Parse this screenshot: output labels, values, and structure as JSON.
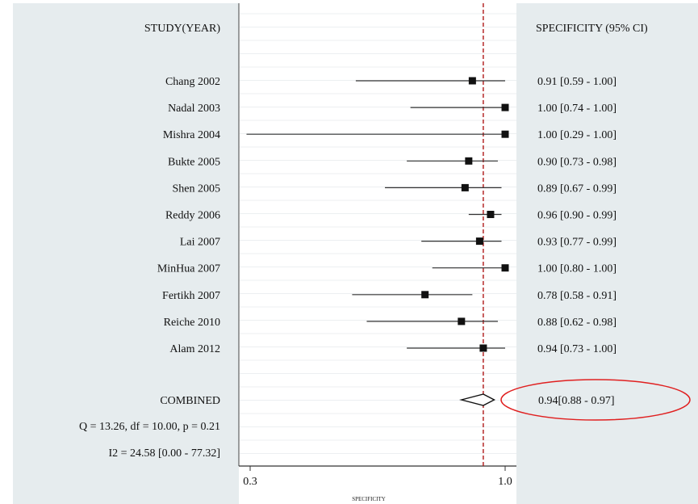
{
  "chart_data": {
    "type": "forest",
    "headers": {
      "study": "STUDY(YEAR)",
      "estimate": "SPECIFICITY (95% CI)"
    },
    "xlabel": "SPECIFICITY",
    "xlim": [
      0.3,
      1.0
    ],
    "x_ticks": [
      "0.3",
      "1.0"
    ],
    "reference_value": 0.94,
    "studies": [
      {
        "label": "Chang 2002",
        "value": 0.91,
        "low": 0.59,
        "high": 1.0,
        "text": "0.91 [0.59 - 1.00]"
      },
      {
        "label": "Nadal 2003",
        "value": 1.0,
        "low": 0.74,
        "high": 1.0,
        "text": "1.00 [0.74 - 1.00]"
      },
      {
        "label": "Mishra 2004",
        "value": 1.0,
        "low": 0.29,
        "high": 1.0,
        "text": "1.00 [0.29 - 1.00]"
      },
      {
        "label": "Bukte 2005",
        "value": 0.9,
        "low": 0.73,
        "high": 0.98,
        "text": "0.90 [0.73 - 0.98]"
      },
      {
        "label": "Shen 2005",
        "value": 0.89,
        "low": 0.67,
        "high": 0.99,
        "text": "0.89 [0.67 - 0.99]"
      },
      {
        "label": "Reddy 2006",
        "value": 0.96,
        "low": 0.9,
        "high": 0.99,
        "text": "0.96 [0.90 - 0.99]"
      },
      {
        "label": "Lai 2007",
        "value": 0.93,
        "low": 0.77,
        "high": 0.99,
        "text": "0.93 [0.77 - 0.99]"
      },
      {
        "label": "MinHua 2007",
        "value": 1.0,
        "low": 0.8,
        "high": 1.0,
        "text": "1.00 [0.80 - 1.00]"
      },
      {
        "label": "Fertikh 2007",
        "value": 0.78,
        "low": 0.58,
        "high": 0.91,
        "text": "0.78 [0.58 - 0.91]"
      },
      {
        "label": "Reiche 2010",
        "value": 0.88,
        "low": 0.62,
        "high": 0.98,
        "text": "0.88 [0.62 - 0.98]"
      },
      {
        "label": "Alam 2012",
        "value": 0.94,
        "low": 0.73,
        "high": 1.0,
        "text": "0.94 [0.73 - 1.00]"
      }
    ],
    "combined": {
      "label": "COMBINED",
      "value": 0.94,
      "low": 0.88,
      "high": 0.97,
      "text": "0.94[0.88 - 0.97]"
    },
    "heterogeneity": {
      "q": "Q = 13.26, df = 10.00, p =  0.21",
      "i2": "I2 = 24.58 [0.00 - 77.32]"
    },
    "colors": {
      "panel": "#e6ecee",
      "reference_line": "#b01818",
      "highlight": "#e02020"
    }
  }
}
